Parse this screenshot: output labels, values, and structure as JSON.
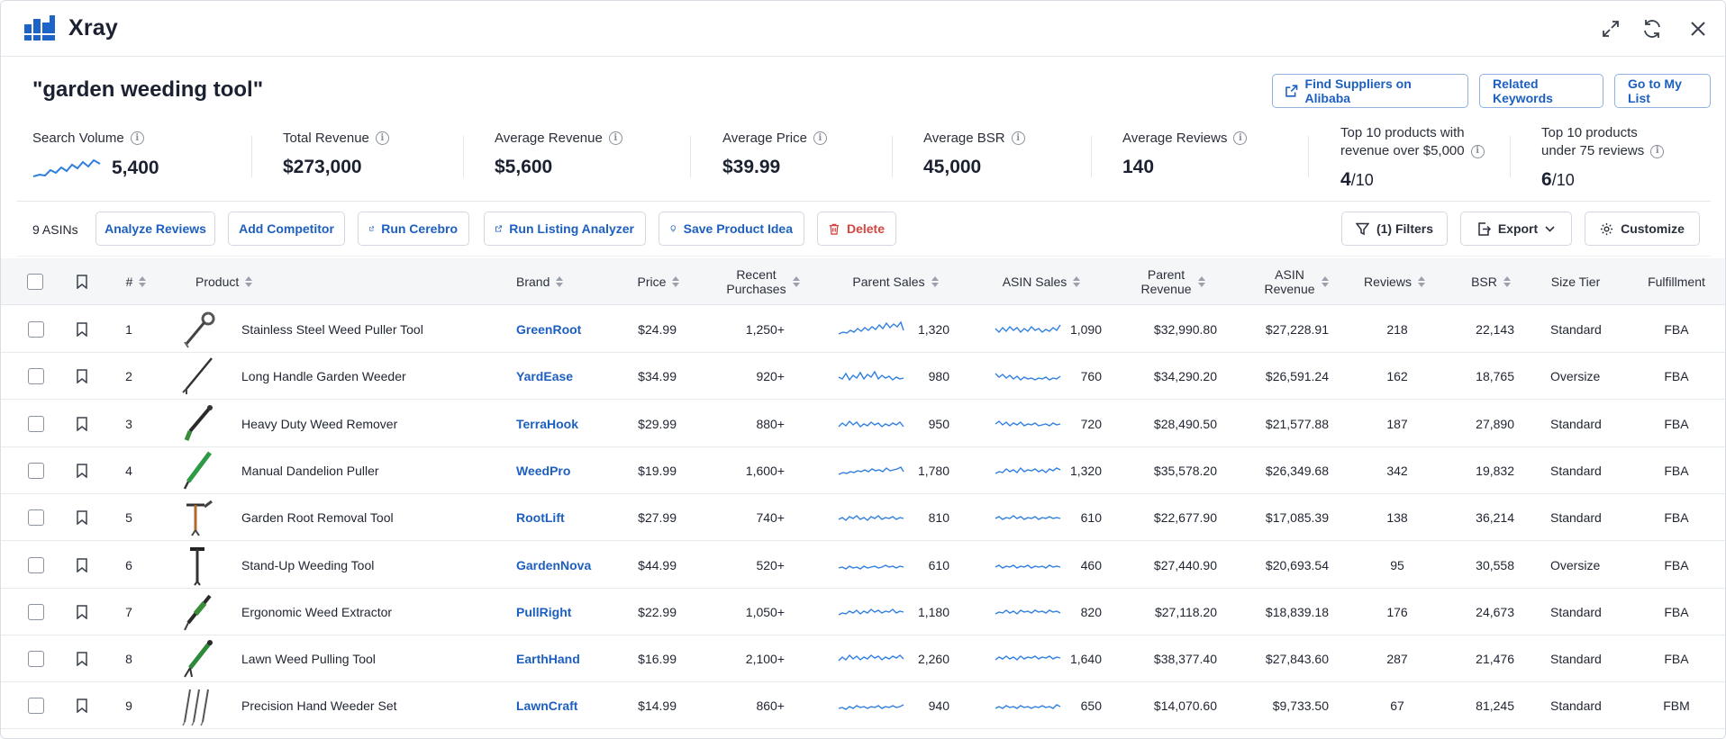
{
  "app": {
    "title": "Xray",
    "brand_color": "#1d64c8"
  },
  "header_icons": [
    "expand-icon",
    "refresh-icon",
    "close-icon"
  ],
  "query": "\"garden weeding tool\"",
  "actions": {
    "suppliers": "Find Suppliers on Alibaba",
    "related": "Related Keywords",
    "mylist": "Go to My List"
  },
  "metrics": {
    "search_volume": {
      "label": "Search Volume",
      "value": "5,400"
    },
    "total_revenue": {
      "label": "Total Revenue",
      "value": "$273,000"
    },
    "avg_revenue": {
      "label": "Average Revenue",
      "value": "$5,600"
    },
    "avg_price": {
      "label": "Average Price",
      "value": "$39.99"
    },
    "avg_bsr": {
      "label": "Average BSR",
      "value": "45,000"
    },
    "avg_reviews": {
      "label": "Average Reviews",
      "value": "140"
    },
    "top10_rev": {
      "label_1": "Top 10 products with",
      "label_2": "revenue over $5,000",
      "num": "4",
      "den": "/10"
    },
    "top10_reviews": {
      "label_1": "Top 10 products",
      "label_2": "under 75 reviews",
      "num": "6",
      "den": "/10"
    }
  },
  "toolbar": {
    "asins": "9 ASINs",
    "analyze": "Analyze Reviews",
    "competitor": "Add Competitor",
    "cerebro": "Run Cerebro",
    "listing": "Run Listing Analyzer",
    "idea": "Save Product Idea",
    "delete": "Delete",
    "filters": "(1) Filters",
    "export": "Export",
    "customize": "Customize"
  },
  "columns": {
    "num": "#",
    "product": "Product",
    "brand": "Brand",
    "price": "Price",
    "recent_1": "Recent",
    "recent_2": "Purchases",
    "parent_sales": "Parent Sales",
    "asin_sales": "ASIN Sales",
    "parent_rev_1": "Parent",
    "parent_rev_2": "Revenue",
    "asin_rev_1": "ASIN",
    "asin_rev_2": "Revenue",
    "reviews": "Reviews",
    "bsr": "BSR",
    "size": "Size Tier",
    "fulfillment": "Fulfillment"
  },
  "rows": [
    {
      "num": "1",
      "product": "Stainless Steel Weed Puller Tool",
      "brand": "GreenRoot",
      "price": "$24.99",
      "recent": "1,250+",
      "parent_sales": "1,320",
      "asin_sales": "1,090",
      "parent_rev": "$32,990.80",
      "asin_rev": "$27,228.91",
      "reviews": "218",
      "bsr": "22,143",
      "size": "Standard",
      "fulfillment": "FBA"
    },
    {
      "num": "2",
      "product": "Long Handle Garden Weeder",
      "brand": "YardEase",
      "price": "$34.99",
      "recent": "920+",
      "parent_sales": "980",
      "asin_sales": "760",
      "parent_rev": "$34,290.20",
      "asin_rev": "$26,591.24",
      "reviews": "162",
      "bsr": "18,765",
      "size": "Oversize",
      "fulfillment": "FBA"
    },
    {
      "num": "3",
      "product": "Heavy Duty Weed Remover",
      "brand": "TerraHook",
      "price": "$29.99",
      "recent": "880+",
      "parent_sales": "950",
      "asin_sales": "720",
      "parent_rev": "$28,490.50",
      "asin_rev": "$21,577.88",
      "reviews": "187",
      "bsr": "27,890",
      "size": "Standard",
      "fulfillment": "FBA"
    },
    {
      "num": "4",
      "product": "Manual Dandelion Puller",
      "brand": "WeedPro",
      "price": "$19.99",
      "recent": "1,600+",
      "parent_sales": "1,780",
      "asin_sales": "1,320",
      "parent_rev": "$35,578.20",
      "asin_rev": "$26,349.68",
      "reviews": "342",
      "bsr": "19,832",
      "size": "Standard",
      "fulfillment": "FBA"
    },
    {
      "num": "5",
      "product": "Garden Root Removal Tool",
      "brand": "RootLift",
      "price": "$27.99",
      "recent": "740+",
      "parent_sales": "810",
      "asin_sales": "610",
      "parent_rev": "$22,677.90",
      "asin_rev": "$17,085.39",
      "reviews": "138",
      "bsr": "36,214",
      "size": "Standard",
      "fulfillment": "FBA"
    },
    {
      "num": "6",
      "product": "Stand-Up Weeding Tool",
      "brand": "GardenNova",
      "price": "$44.99",
      "recent": "520+",
      "parent_sales": "610",
      "asin_sales": "460",
      "parent_rev": "$27,440.90",
      "asin_rev": "$20,693.54",
      "reviews": "95",
      "bsr": "30,558",
      "size": "Oversize",
      "fulfillment": "FBA"
    },
    {
      "num": "7",
      "product": "Ergonomic Weed Extractor",
      "brand": "PullRight",
      "price": "$22.99",
      "recent": "1,050+",
      "parent_sales": "1,180",
      "asin_sales": "820",
      "parent_rev": "$27,118.20",
      "asin_rev": "$18,839.18",
      "reviews": "176",
      "bsr": "24,673",
      "size": "Standard",
      "fulfillment": "FBA"
    },
    {
      "num": "8",
      "product": "Lawn Weed Pulling Tool",
      "brand": "EarthHand",
      "price": "$16.99",
      "recent": "2,100+",
      "parent_sales": "2,260",
      "asin_sales": "1,640",
      "parent_rev": "$38,377.40",
      "asin_rev": "$27,843.60",
      "reviews": "287",
      "bsr": "21,476",
      "size": "Standard",
      "fulfillment": "FBA"
    },
    {
      "num": "9",
      "product": "Precision Hand Weeder Set",
      "brand": "LawnCraft",
      "price": "$14.99",
      "recent": "860+",
      "parent_sales": "940",
      "asin_sales": "650",
      "parent_rev": "$14,070.60",
      "asin_rev": "$9,733.50",
      "reviews": "67",
      "bsr": "81,245",
      "size": "Standard",
      "fulfillment": "FBM"
    }
  ]
}
